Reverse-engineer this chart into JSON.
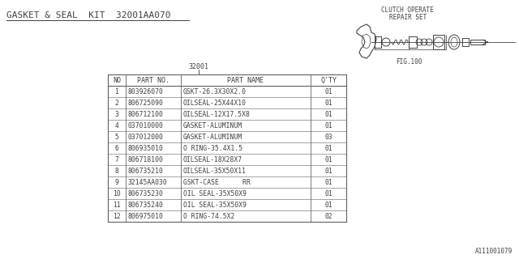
{
  "title": "GASKET & SEAL  KIT  32001AA070",
  "part_number_label": "32001",
  "fig_label": "FIG.100",
  "clutch_label_line1": "CLUTCH OPERATE",
  "clutch_label_line2": "REPAIR SET",
  "footer": "A111001079",
  "table_headers": [
    "NO",
    "PART NO.",
    "PART NAME",
    "Q'TY"
  ],
  "table_rows": [
    [
      "1",
      "803926070",
      "GSKT-26.3X30X2.0",
      "01"
    ],
    [
      "2",
      "806725090",
      "OILSEAL-25X44X10",
      "01"
    ],
    [
      "3",
      "806712100",
      "OILSEAL-12X17.5X8",
      "01"
    ],
    [
      "4",
      "037010000",
      "GASKET-ALUMINUM",
      "01"
    ],
    [
      "5",
      "037012000",
      "GASKET-ALUMINUM",
      "03"
    ],
    [
      "6",
      "806935010",
      "O RING-35.4X1.5",
      "01"
    ],
    [
      "7",
      "806718100",
      "OILSEAL-18X28X7",
      "01"
    ],
    [
      "8",
      "806735210",
      "OILSEAL-35X50X11",
      "01"
    ],
    [
      "9",
      "32145AA030",
      "GSKT-CASE      RR",
      "01"
    ],
    [
      "10",
      "806735230",
      "OIL SEAL-35X50X9",
      "01"
    ],
    [
      "11",
      "806735240",
      "OIL SEAL-35X50X9",
      "01"
    ],
    [
      "12",
      "806975010",
      "O RING-74.5X2",
      "02"
    ]
  ],
  "bg_color": "#ffffff",
  "text_color": "#404040",
  "table_line_color": "#606060",
  "font_size": 5.8,
  "header_font_size": 6.0,
  "title_font_size": 8.0,
  "title_color": "#505050"
}
